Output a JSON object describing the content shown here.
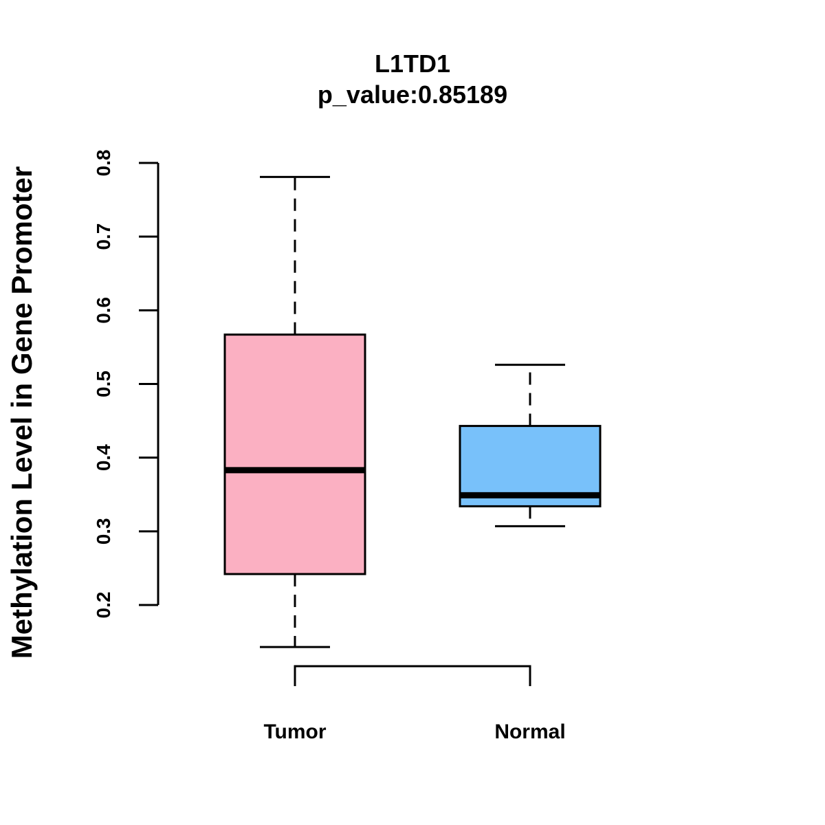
{
  "chart_data": {
    "type": "boxplot",
    "title": "L1TD1",
    "subtitle": "p_value:0.85189",
    "xlabel": "",
    "ylabel": "Methylation Level in Gene Promoter",
    "ylim": [
      0.2,
      0.8
    ],
    "yticks": [
      0.2,
      0.3,
      0.4,
      0.5,
      0.6,
      0.7,
      0.8
    ],
    "ytick_labels": [
      "0.2",
      "0.3",
      "0.4",
      "0.5",
      "0.6",
      "0.7",
      "0.8"
    ],
    "categories": [
      "Tumor",
      "Normal"
    ],
    "series": [
      {
        "name": "Tumor",
        "min": 0.143,
        "q1": 0.242,
        "median": 0.383,
        "q3": 0.567,
        "max": 0.781,
        "color": "#FBB0C2"
      },
      {
        "name": "Normal",
        "min": 0.307,
        "q1": 0.334,
        "median": 0.349,
        "q3": 0.443,
        "max": 0.526,
        "color": "#78C1FA"
      }
    ],
    "grid": false,
    "legend": "none"
  }
}
